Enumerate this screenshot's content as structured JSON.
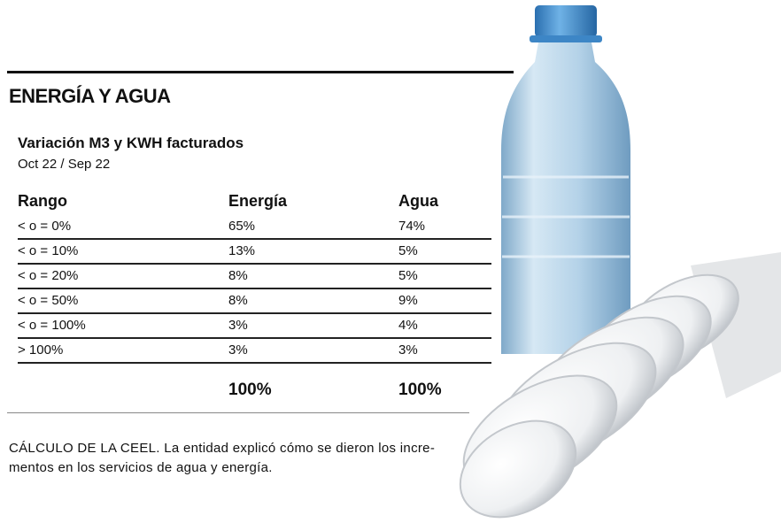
{
  "header": {
    "title": "ENERGÍA Y AGUA",
    "subtitle": "Variación M3 y KWH facturados",
    "period": "Oct 22 / Sep 22"
  },
  "table": {
    "columns": [
      "Rango",
      "Energía",
      "Agua"
    ],
    "rows": [
      [
        "< o = 0%",
        "65%",
        "74%"
      ],
      [
        "< o = 10%",
        "13%",
        "5%"
      ],
      [
        "< o = 20%",
        "8%",
        "5%"
      ],
      [
        "< o = 50%",
        "8%",
        "9%"
      ],
      [
        "< o = 100%",
        "3%",
        "4%"
      ],
      [
        "> 100%",
        "3%",
        "3%"
      ]
    ],
    "totals": [
      "100%",
      "100%"
    ]
  },
  "caption": {
    "lead": "CÁLCULO DE LA CEEL.",
    "lines": [
      "La entidad explicó cómo se dieron los incre-",
      "mentos en los servicios de agua y energía."
    ]
  }
}
